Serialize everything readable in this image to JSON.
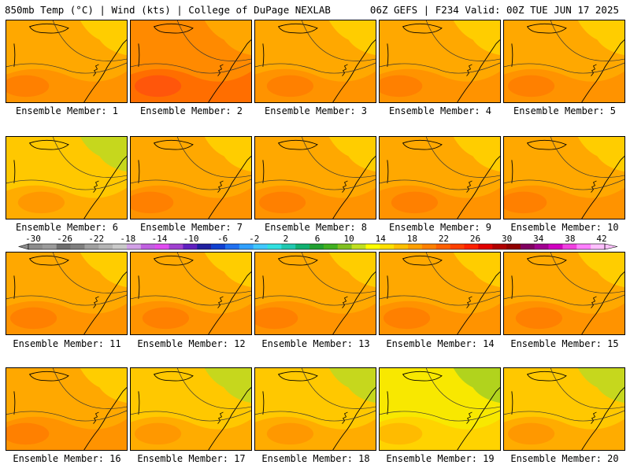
{
  "header": {
    "left": "850mb Temp (°C) | Wind (kts) | College of DuPage NEXLAB",
    "right": "06Z GEFS | F234 Valid: 00Z TUE JUN 17 2025"
  },
  "panels": [
    {
      "label": "Ensemble Member: 1",
      "dominant": "orange"
    },
    {
      "label": "Ensemble Member: 2",
      "dominant": "dark-orange"
    },
    {
      "label": "Ensemble Member: 3",
      "dominant": "orange"
    },
    {
      "label": "Ensemble Member: 4",
      "dominant": "orange"
    },
    {
      "label": "Ensemble Member: 5",
      "dominant": "orange"
    },
    {
      "label": "Ensemble Member: 6",
      "dominant": "yellow-orange"
    },
    {
      "label": "Ensemble Member: 7",
      "dominant": "orange"
    },
    {
      "label": "Ensemble Member: 8",
      "dominant": "orange"
    },
    {
      "label": "Ensemble Member: 9",
      "dominant": "orange"
    },
    {
      "label": "Ensemble Member: 10",
      "dominant": "orange"
    },
    {
      "label": "Ensemble Member: 11",
      "dominant": "orange"
    },
    {
      "label": "Ensemble Member: 12",
      "dominant": "orange"
    },
    {
      "label": "Ensemble Member: 13",
      "dominant": "orange"
    },
    {
      "label": "Ensemble Member: 14",
      "dominant": "orange"
    },
    {
      "label": "Ensemble Member: 15",
      "dominant": "orange"
    },
    {
      "label": "Ensemble Member: 16",
      "dominant": "orange"
    },
    {
      "label": "Ensemble Member: 17",
      "dominant": "yellow-orange"
    },
    {
      "label": "Ensemble Member: 18",
      "dominant": "yellow-orange"
    },
    {
      "label": "Ensemble Member: 19",
      "dominant": "yellow"
    },
    {
      "label": "Ensemble Member: 20",
      "dominant": "yellow-orange"
    }
  ],
  "colorbar": {
    "tick_labels": [
      "-30",
      "-26",
      "-22",
      "-18",
      "-14",
      "-10",
      "-6",
      "-2",
      "2",
      "6",
      "10",
      "14",
      "18",
      "22",
      "26",
      "30",
      "34",
      "38",
      "42"
    ],
    "colors": [
      "#8c8c8c",
      "#9b9b9b",
      "#6e6e6e",
      "#7f7f7f",
      "#a0a0a0",
      "#b4b4b4",
      "#c9c9c9",
      "#d2a0e6",
      "#c060e0",
      "#e04cf0",
      "#a040d0",
      "#6020c0",
      "#2020a0",
      "#1040d0",
      "#2070f0",
      "#30a0ff",
      "#40c8ff",
      "#30e0e0",
      "#20c8b0",
      "#10b070",
      "#20a030",
      "#40b020",
      "#80c020",
      "#c0e020",
      "#ffff00",
      "#ffe000",
      "#ffc000",
      "#ffa000",
      "#ff8000",
      "#ff6000",
      "#ff4000",
      "#ff2000",
      "#e00000",
      "#b00000",
      "#900000",
      "#800060",
      "#a00090",
      "#d000c0",
      "#f040e0",
      "#ff80ff",
      "#ffc0ff"
    ]
  }
}
